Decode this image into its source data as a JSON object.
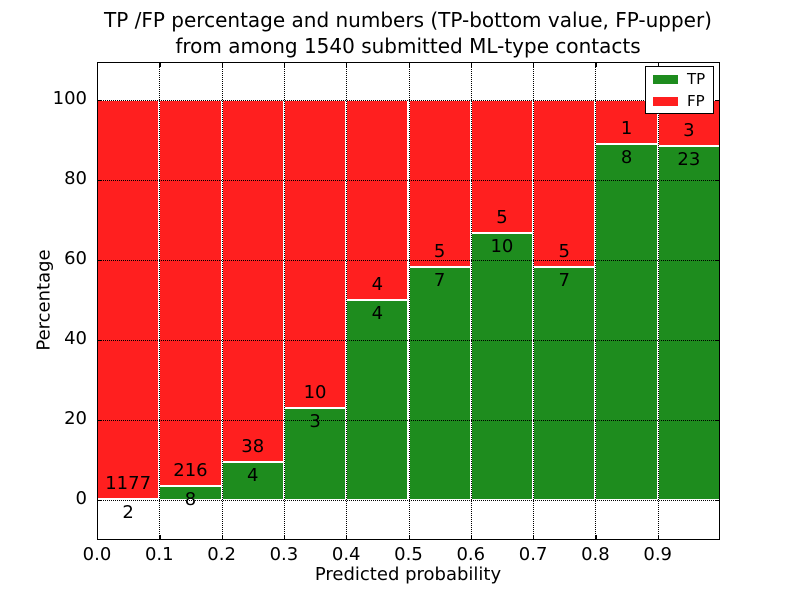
{
  "figure": {
    "title_line1": "TP /FP percentage and numbers (TP-bottom value, FP-upper)",
    "title_line2": "from among 1540 submitted ML-type contacts",
    "xlabel": "Predicted probability",
    "ylabel": "Percentage"
  },
  "legend": {
    "items": [
      {
        "label": "TP",
        "color": "#1e8c1e"
      },
      {
        "label": "FP",
        "color": "#ff1f1f"
      }
    ],
    "position": "upper right"
  },
  "axes": {
    "xtick_labels": [
      "0.0",
      "0.1",
      "0.2",
      "0.3",
      "0.4",
      "0.5",
      "0.6",
      "0.7",
      "0.8",
      "0.9"
    ],
    "xtick_values": [
      0.0,
      0.1,
      0.2,
      0.3,
      0.4,
      0.5,
      0.6,
      0.7,
      0.8,
      0.9
    ],
    "ytick_labels": [
      "0",
      "20",
      "40",
      "60",
      "80",
      "100"
    ],
    "ytick_values": [
      0,
      20,
      40,
      60,
      80,
      100
    ],
    "grid_style": "dotted",
    "tick_direction": "in"
  },
  "chart_data": {
    "type": "bar",
    "stacked": true,
    "normalized_to_percent": true,
    "title": "TP /FP percentage and numbers (TP-bottom value, FP-upper) from among 1540 submitted ML-type contacts",
    "xlabel": "Predicted probability",
    "ylabel": "Percentage",
    "categories": [
      "0.0-0.1",
      "0.1-0.2",
      "0.2-0.3",
      "0.3-0.4",
      "0.4-0.5",
      "0.5-0.6",
      "0.6-0.7",
      "0.7-0.8",
      "0.8-0.9",
      "0.9-1.0"
    ],
    "x_bin_edges": [
      0.0,
      0.1,
      0.2,
      0.3,
      0.4,
      0.5,
      0.6,
      0.7,
      0.8,
      0.9,
      1.0
    ],
    "series": [
      {
        "name": "TP",
        "color": "#1e8c1e",
        "counts": [
          2,
          8,
          4,
          3,
          4,
          7,
          10,
          7,
          8,
          23
        ]
      },
      {
        "name": "FP",
        "color": "#ff1f1f",
        "counts": [
          1177,
          216,
          38,
          10,
          4,
          5,
          5,
          5,
          1,
          3
        ]
      }
    ],
    "tp_percentages": [
      0.17,
      3.57,
      9.52,
      23.08,
      50.0,
      58.33,
      66.67,
      58.33,
      88.89,
      88.46
    ],
    "total_contacts": 1540,
    "xlim": [
      0.0,
      1.0
    ],
    "ylim": [
      -10,
      110
    ],
    "grid": "dotted",
    "legend_position": "upper right",
    "annotation_note": "TP count printed below each stack boundary, FP count above it"
  }
}
